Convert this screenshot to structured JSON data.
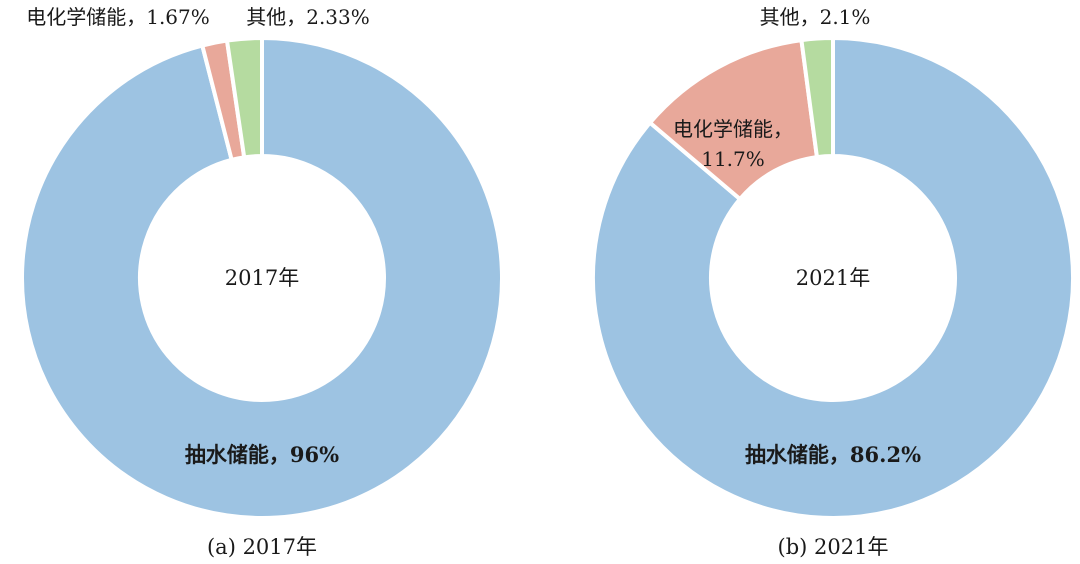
{
  "chart_data": [
    {
      "type": "pie",
      "variant": "donut",
      "center_label": "2017年",
      "caption": "(a) 2017年",
      "slices": [
        {
          "label": "抽水储能",
          "value": 96,
          "display": "抽水储能，96%",
          "color": "#9dc3e2"
        },
        {
          "label": "电化学储能",
          "value": 1.67,
          "display": "电化学储能，1.67%",
          "color": "#e8a89a"
        },
        {
          "label": "其他",
          "value": 2.33,
          "display": "其他，2.33%",
          "color": "#b5dba0"
        }
      ]
    },
    {
      "type": "pie",
      "variant": "donut",
      "center_label": "2021年",
      "caption": "(b) 2021年",
      "slices": [
        {
          "label": "抽水储能",
          "value": 86.2,
          "display": "抽水储能，86.2%",
          "color": "#9dc3e2"
        },
        {
          "label": "电化学储能",
          "value": 11.7,
          "display": "电化学储能，\n11.7%",
          "color": "#e8a89a"
        },
        {
          "label": "其他",
          "value": 2.1,
          "display": "其他，2.1%",
          "color": "#b5dba0"
        }
      ]
    }
  ]
}
